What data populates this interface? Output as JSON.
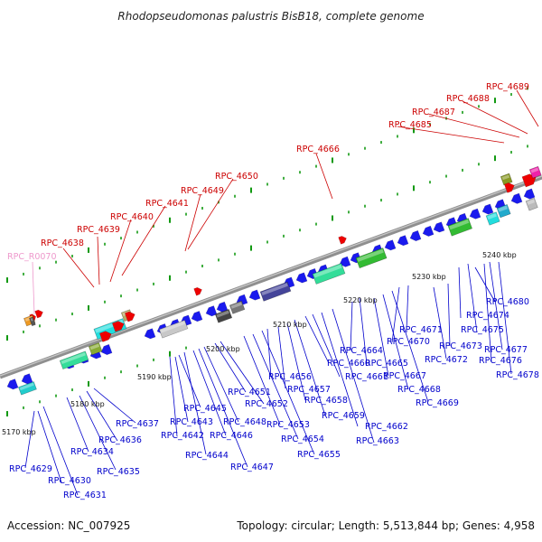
{
  "title": "Rhodopseudomonas palustris BisB18, complete genome",
  "footer": {
    "accession": "Accession: NC_007925",
    "summary": "Topology: circular; Length: 5,513,844 bp; Genes: 4,958"
  },
  "colors": {
    "forward_label": "#cc0000",
    "reverse_label": "#0000cc",
    "rna_label": "#ee99cc",
    "backbone": "#999999",
    "tick": "#119911"
  },
  "kbp_labels": [
    "5170 kbp",
    "5180 kbp",
    "5190 kbp",
    "5200 kbp",
    "5210 kbp",
    "5220 kbp",
    "5230 kbp",
    "5240 kbp"
  ],
  "forward_genes": [
    "RPC_4638",
    "RPC_4639",
    "RPC_4640",
    "RPC_4641",
    "RPC_4649",
    "RPC_4650",
    "RPC_4666",
    "RPC_4685",
    "RPC_4687",
    "RPC_4688",
    "RPC_4689"
  ],
  "rna_genes": [
    "RPC_R0070"
  ],
  "reverse_genes": [
    "RPC_4629",
    "RPC_4630",
    "RPC_4631",
    "RPC_4634",
    "RPC_4635",
    "RPC_4636",
    "RPC_4637",
    "RPC_4642",
    "RPC_4643",
    "RPC_4644",
    "RPC_4645",
    "RPC_4646",
    "RPC_4647",
    "RPC_4648",
    "RPC_4651",
    "RPC_4652",
    "RPC_4653",
    "RPC_4654",
    "RPC_4655",
    "RPC_4656",
    "RPC_4657",
    "RPC_4658",
    "RPC_4659",
    "RPC_4660",
    "RPC_4661",
    "RPC_4662",
    "RPC_4663",
    "RPC_4664",
    "RPC_4665",
    "RPC_4667",
    "RPC_4668",
    "RPC_4669",
    "RPC_4670",
    "RPC_4671",
    "RPC_4672",
    "RPC_4673",
    "RPC_4674",
    "RPC_4675",
    "RPC_4676",
    "RPC_4677",
    "RPC_4678",
    "RPC_4680"
  ]
}
